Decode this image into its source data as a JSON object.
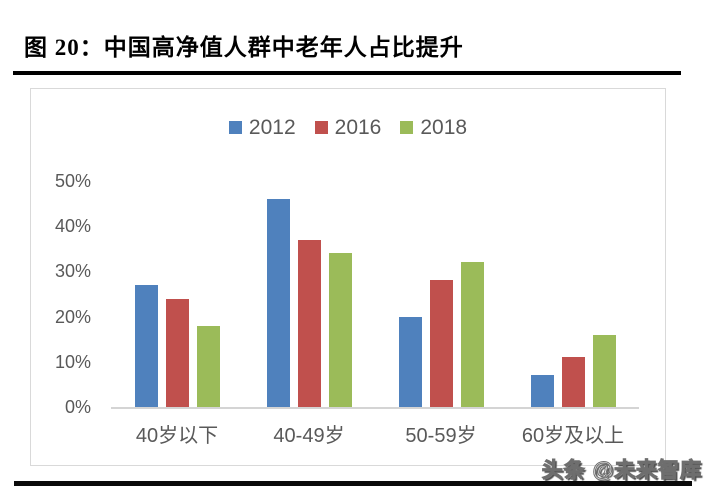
{
  "page": {
    "title": "图 20：中国高净值人群中老年人占比提升",
    "watermark": "头条 @未来智库"
  },
  "chart_data": {
    "type": "bar",
    "title": "图 20：中国高净值人群中老年人占比提升",
    "categories": [
      "40岁以下",
      "40-49岁",
      "50-59岁",
      "60岁及以上"
    ],
    "series": [
      {
        "name": "2012",
        "color": "#4F81BD",
        "values": [
          27,
          46,
          20,
          7
        ]
      },
      {
        "name": "2016",
        "color": "#C0504D",
        "values": [
          24,
          37,
          28,
          11
        ]
      },
      {
        "name": "2018",
        "color": "#9BBB59",
        "values": [
          18,
          34,
          32,
          16
        ]
      }
    ],
    "ylabel": "",
    "xlabel": "",
    "ylim": [
      0,
      50
    ],
    "ytick_step": 10,
    "yticks": [
      "0%",
      "10%",
      "20%",
      "30%",
      "40%",
      "50%"
    ],
    "grid": false,
    "legend_position": "top-center",
    "colors": {
      "axis_text": "#595959",
      "frame_border": "#D9D9D9",
      "axis_line": "#D4D4D4",
      "title_text": "#000000"
    }
  }
}
